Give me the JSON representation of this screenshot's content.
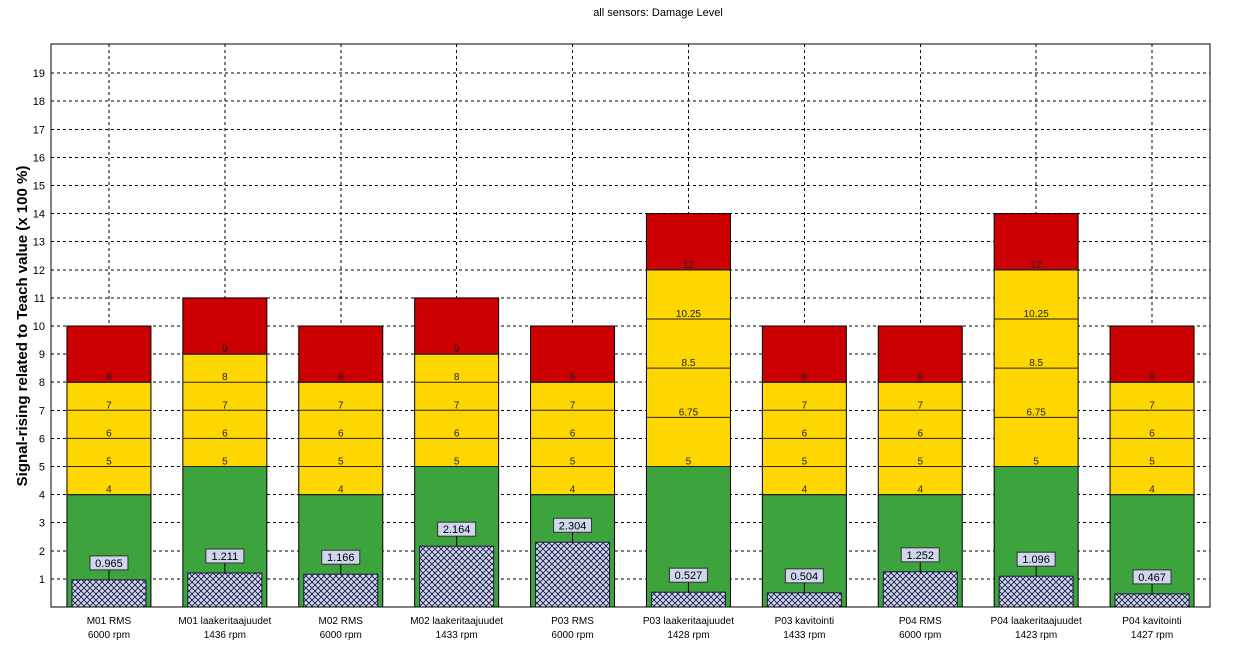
{
  "chart_data": {
    "type": "bar",
    "title": "all sensors: Damage Level",
    "ylabel": "Signal-rising related to Teach value (x 100 %)",
    "xlabel": "",
    "ylim": [
      0,
      20
    ],
    "yticks": [
      "1",
      "2",
      "3",
      "4",
      "5",
      "6",
      "7",
      "8",
      "9",
      "10",
      "11",
      "12",
      "13",
      "14",
      "15",
      "16",
      "17",
      "18",
      "19"
    ],
    "grid": true,
    "colors": {
      "green": "#3da33d",
      "yellow": "#ffd700",
      "red": "#cc0000",
      "value_fill": "#cfd6ee",
      "value_hatch": "#1a1a40"
    },
    "categories": [
      {
        "name": "M01 RMS",
        "rpm": "6000 rpm",
        "green_max": 4,
        "yellow_max": 8,
        "max": 10,
        "lines": [
          "4",
          "5",
          "6",
          "7",
          "8"
        ],
        "value": 0.965,
        "value_label": "0.965"
      },
      {
        "name": "M01 laakeritaajuudet",
        "rpm": "1436 rpm",
        "green_max": 5,
        "yellow_max": 9,
        "max": 11,
        "lines": [
          "5",
          "6",
          "7",
          "8",
          "9"
        ],
        "value": 1.211,
        "value_label": "1.211"
      },
      {
        "name": "M02 RMS",
        "rpm": "6000 rpm",
        "green_max": 4,
        "yellow_max": 8,
        "max": 10,
        "lines": [
          "4",
          "5",
          "6",
          "7",
          "8"
        ],
        "value": 1.166,
        "value_label": "1.166"
      },
      {
        "name": "M02 laakeritaajuudet",
        "rpm": "1433 rpm",
        "green_max": 5,
        "yellow_max": 9,
        "max": 11,
        "lines": [
          "5",
          "6",
          "7",
          "8",
          "9"
        ],
        "value": 2.164,
        "value_label": "2.164"
      },
      {
        "name": "P03 RMS",
        "rpm": "6000 rpm",
        "green_max": 4,
        "yellow_max": 8,
        "max": 10,
        "lines": [
          "4",
          "5",
          "6",
          "7",
          "8"
        ],
        "value": 2.304,
        "value_label": "2.304"
      },
      {
        "name": "P03 laakeritaajuudet",
        "rpm": "1428 rpm",
        "green_max": 5,
        "yellow_max": 12,
        "max": 14,
        "lines": [
          "5",
          "6.75",
          "8.5",
          "10.25",
          "12"
        ],
        "value": 0.527,
        "value_label": "0.527"
      },
      {
        "name": "P03 kavitointi",
        "rpm": "1433 rpm",
        "green_max": 4,
        "yellow_max": 8,
        "max": 10,
        "lines": [
          "4",
          "5",
          "6",
          "7",
          "8"
        ],
        "value": 0.504,
        "value_label": "0.504"
      },
      {
        "name": "P04 RMS",
        "rpm": "6000 rpm",
        "green_max": 4,
        "yellow_max": 8,
        "max": 10,
        "lines": [
          "4",
          "5",
          "6",
          "7",
          "8"
        ],
        "value": 1.252,
        "value_label": "1.252"
      },
      {
        "name": "P04 laakeritaajuudet",
        "rpm": "1423 rpm",
        "green_max": 5,
        "yellow_max": 12,
        "max": 14,
        "lines": [
          "5",
          "6.75",
          "8.5",
          "10.25",
          "12"
        ],
        "value": 1.096,
        "value_label": "1.096"
      },
      {
        "name": "P04 kavitointi",
        "rpm": "1427 rpm",
        "green_max": 4,
        "yellow_max": 8,
        "max": 10,
        "lines": [
          "4",
          "5",
          "6",
          "7",
          "8"
        ],
        "value": 0.467,
        "value_label": "0.467"
      }
    ]
  }
}
